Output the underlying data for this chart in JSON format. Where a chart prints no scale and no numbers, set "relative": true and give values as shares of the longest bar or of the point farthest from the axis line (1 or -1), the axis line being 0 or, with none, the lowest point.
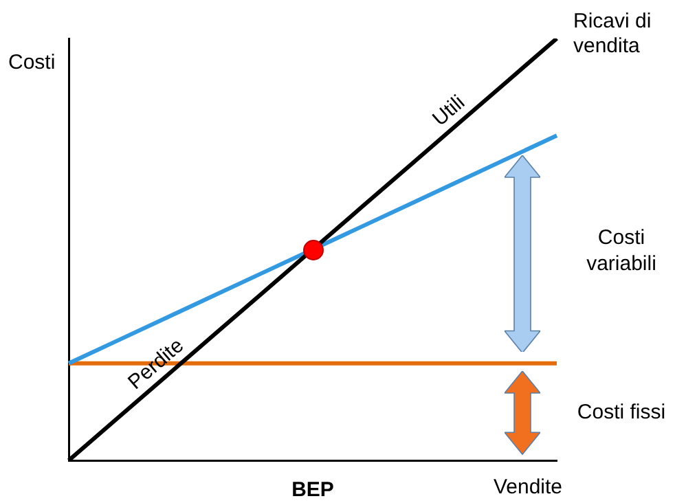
{
  "chart_data": {
    "type": "line",
    "relative": true,
    "ylabel": "Costi",
    "xlabel": "Vendite",
    "tick_labels": false,
    "grid": false,
    "legend": false,
    "marker": "none",
    "categories": [
      null,
      null,
      null,
      null,
      null,
      null,
      null,
      null,
      null,
      null,
      null
    ],
    "series": [
      {
        "name": "Ricavi di vendita",
        "color": "#000000",
        "values": [
          0,
          0.1,
          0.2,
          0.3,
          0.4,
          0.5,
          0.6,
          0.7,
          0.8,
          0.9,
          1
        ]
      },
      {
        "color": "#3399e0",
        "values": [
          0.23,
          0.284,
          0.338,
          0.392,
          0.446,
          0.5,
          0.554,
          0.608,
          0.662,
          0.716,
          0.77
        ]
      },
      {
        "color": "#e46c0a",
        "values": [
          0.23,
          0.23,
          0.23,
          0.23,
          0.23,
          0.23,
          0.23,
          0.23,
          0.23,
          0.23,
          0.23
        ]
      }
    ],
    "annotations": [
      "Utili",
      "Perdite",
      "BEP",
      "Costi variabili",
      "Costi fissi"
    ]
  }
}
